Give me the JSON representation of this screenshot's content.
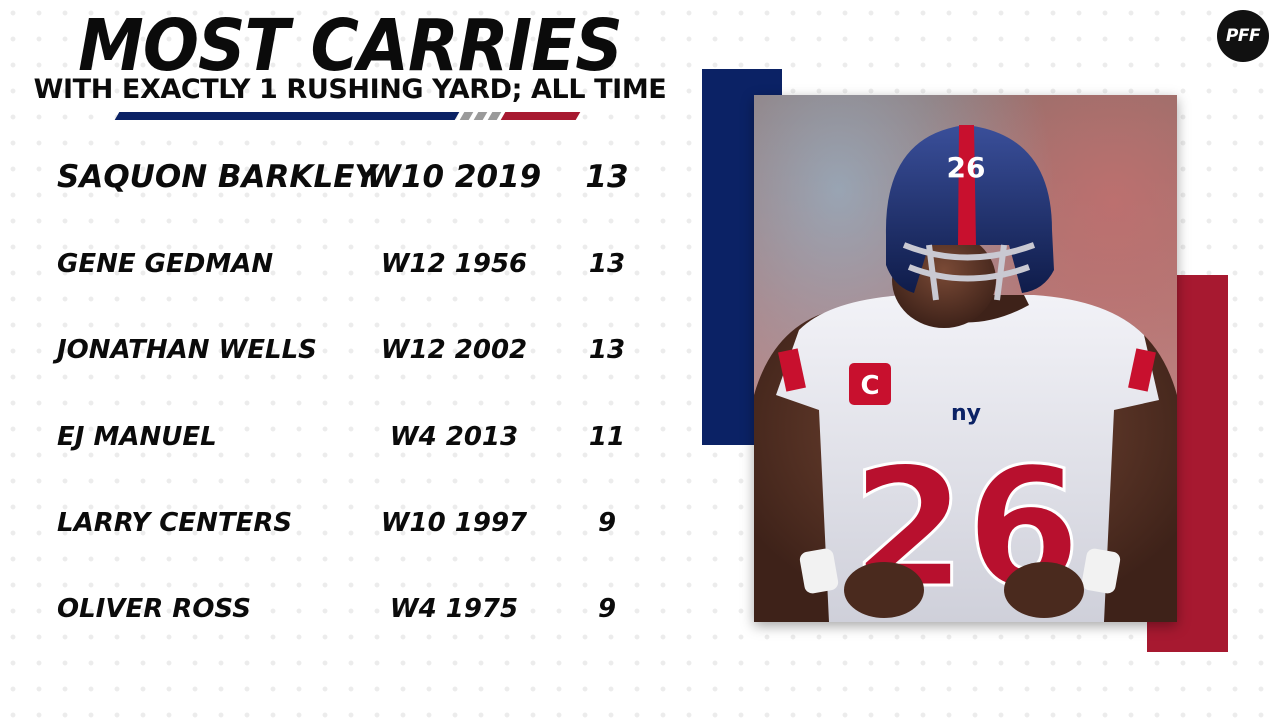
{
  "header": {
    "title": "MOST CARRIES",
    "subtitle": "WITH EXACTLY 1 RUSHING YARD; ALL TIME"
  },
  "logo": {
    "text": "PFF",
    "icon": "pff-logo"
  },
  "table": {
    "rows": [
      {
        "name": "SAQUON BARKLEY",
        "week": "W10 2019",
        "carries": "13"
      },
      {
        "name": "GENE GEDMAN",
        "week": "W12 1956",
        "carries": "13"
      },
      {
        "name": "JONATHAN WELLS",
        "week": "W12 2002",
        "carries": "13"
      },
      {
        "name": "EJ MANUEL",
        "week": "W4 2013",
        "carries": "11"
      },
      {
        "name": "LARRY CENTERS",
        "week": "W10 1997",
        "carries": "9"
      },
      {
        "name": "OLIVER ROSS",
        "week": "W4 1975",
        "carries": "9"
      }
    ]
  },
  "photo": {
    "jersey_number": "26",
    "captain_patch": "C",
    "team_logo": "ny"
  },
  "colors": {
    "navy": "#0b2265",
    "red": "#a71930",
    "gray": "#9a9a9a",
    "text": "#0b0b0b"
  }
}
